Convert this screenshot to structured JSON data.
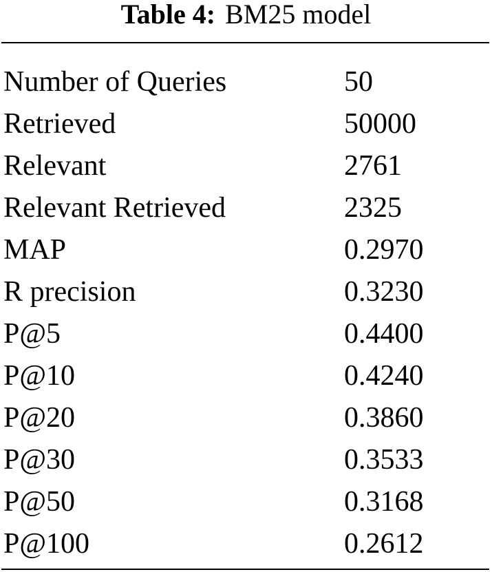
{
  "caption": {
    "label": "Table 4:",
    "text": "BM25 model"
  },
  "table": {
    "rows": [
      [
        "Number of Queries",
        "50"
      ],
      [
        "Retrieved",
        "50000"
      ],
      [
        "Relevant",
        "2761"
      ],
      [
        "Relevant Retrieved",
        "2325"
      ],
      [
        "MAP",
        "0.2970"
      ],
      [
        "R precision",
        "0.3230"
      ],
      [
        "P@5",
        "0.4400"
      ],
      [
        "P@10",
        "0.4240"
      ],
      [
        "P@20",
        "0.3860"
      ],
      [
        "P@30",
        "0.3533"
      ],
      [
        "P@50",
        "0.3168"
      ],
      [
        "P@100",
        "0.2612"
      ]
    ]
  }
}
